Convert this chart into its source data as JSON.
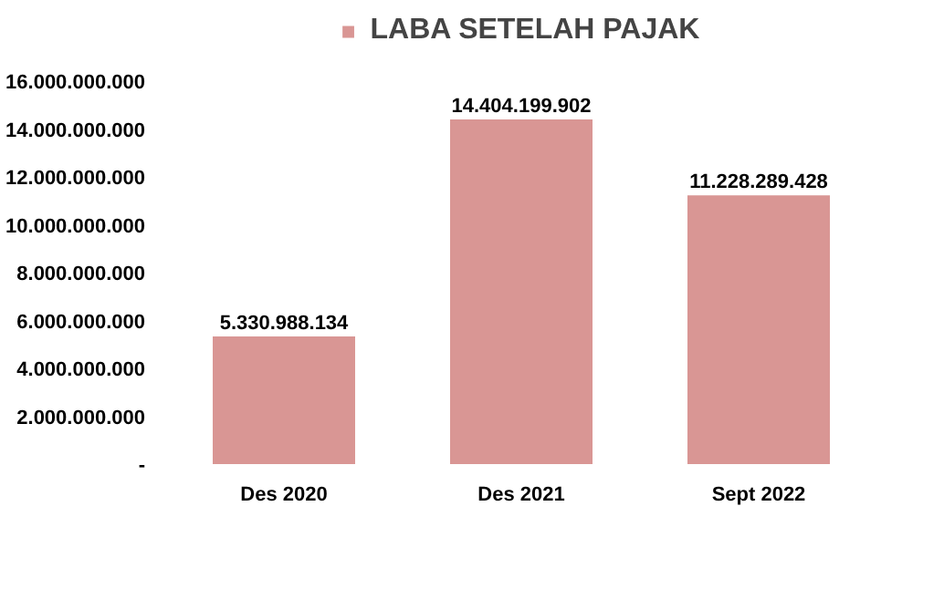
{
  "chart_data": {
    "type": "bar",
    "categories": [
      "Des 2020",
      "Des 2021",
      "Sept 2022"
    ],
    "series": [
      {
        "name": "LABA SETELAH PAJAK",
        "color": "#d99694",
        "values": [
          5330988134,
          14404199902,
          11228289428
        ],
        "value_labels": [
          "5.330.988.134",
          "14.404.199.902",
          "11.228.289.428"
        ]
      }
    ],
    "ylim": [
      0,
      16000000000
    ],
    "yticks": [
      {
        "value": 0,
        "label": "-"
      },
      {
        "value": 2000000000,
        "label": "2.000.000.000"
      },
      {
        "value": 4000000000,
        "label": "4.000.000.000"
      },
      {
        "value": 6000000000,
        "label": "6.000.000.000"
      },
      {
        "value": 8000000000,
        "label": "8.000.000.000"
      },
      {
        "value": 10000000000,
        "label": "10.000.000.000"
      },
      {
        "value": 12000000000,
        "label": "12.000.000.000"
      },
      {
        "value": 14000000000,
        "label": "14.000.000.000"
      },
      {
        "value": 16000000000,
        "label": "16.000.000.000"
      }
    ],
    "legend": "top",
    "grid": false
  }
}
